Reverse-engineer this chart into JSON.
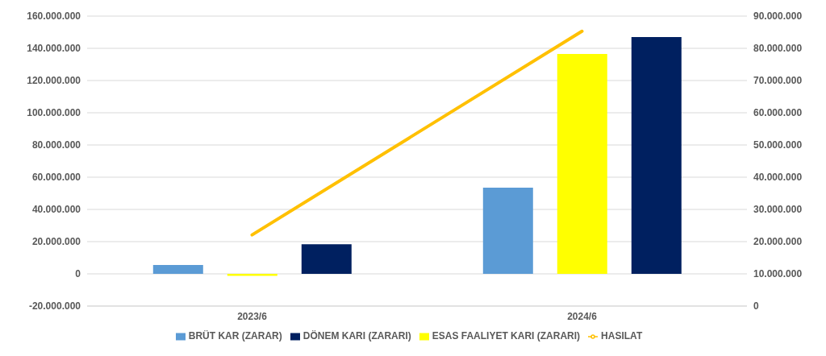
{
  "chart_data": {
    "type": "bar",
    "categories": [
      "2023/6",
      "2024/6"
    ],
    "series": [
      {
        "name": "BRÜT KAR (ZARAR)",
        "color": "#5b9bd5",
        "values": [
          5500000,
          53500000
        ]
      },
      {
        "name": "ESAS FAALIYET KARI (ZARARI)",
        "color": "#ffff00",
        "values": [
          -1300000,
          136500000
        ]
      },
      {
        "name": "DÖNEM KARI (ZARARI)",
        "color": "#002060",
        "values": [
          18400000,
          147000000
        ]
      },
      {
        "name": "HASILAT",
        "type": "line",
        "axis": "y2",
        "color": "#ffc000",
        "values": [
          22100000,
          85300000
        ]
      }
    ],
    "ylim": [
      -20000000,
      160000000
    ],
    "yticks": [
      {
        "value": -20000000,
        "label": "-20.000.000"
      },
      {
        "value": 0,
        "label": "0"
      },
      {
        "value": 20000000,
        "label": "20.000.000"
      },
      {
        "value": 40000000,
        "label": "40.000.000"
      },
      {
        "value": 60000000,
        "label": "60.000.000"
      },
      {
        "value": 80000000,
        "label": "80.000.000"
      },
      {
        "value": 100000000,
        "label": "100.000.000"
      },
      {
        "value": 120000000,
        "label": "120.000.000"
      },
      {
        "value": 140000000,
        "label": "140.000.000"
      },
      {
        "value": 160000000,
        "label": "160.000.000"
      }
    ],
    "y2lim": [
      0,
      90000000
    ],
    "y2ticks": [
      0,
      {
        "value": 10000000,
        "label": "10.000.000"
      },
      {
        "value": 20000000,
        "label": "20.000.000"
      },
      {
        "value": 30000000,
        "label": "30.000.000"
      },
      {
        "value": 40000000,
        "label": "40.000.000"
      },
      {
        "value": 50000000,
        "label": "50.000.000"
      },
      {
        "value": 60000000,
        "label": "60.000.000"
      },
      {
        "value": 70000000,
        "label": "70.000.000"
      },
      {
        "value": 80000000,
        "label": "80.000.000"
      },
      {
        "value": 90000000,
        "label": "90.000.000"
      }
    ],
    "grid": "y",
    "legend": "bottom",
    "marker": "none"
  }
}
